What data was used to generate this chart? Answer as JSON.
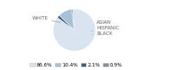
{
  "labels": [
    "WHITE",
    "ASIAN",
    "HISPANIC",
    "BLACK"
  ],
  "values": [
    86.6,
    2.1,
    10.4,
    0.9
  ],
  "colors": [
    "#d9e4f0",
    "#3a607f",
    "#a8c0d6",
    "#8090a0"
  ],
  "legend_labels": [
    "86.6%",
    "10.4%",
    "2.1%",
    "0.9%"
  ],
  "legend_colors": [
    "#d9e4f0",
    "#a8c0d6",
    "#3a607f",
    "#8090a0"
  ],
  "startangle": 95,
  "label_fontsize": 5.0,
  "legend_fontsize": 5.0
}
